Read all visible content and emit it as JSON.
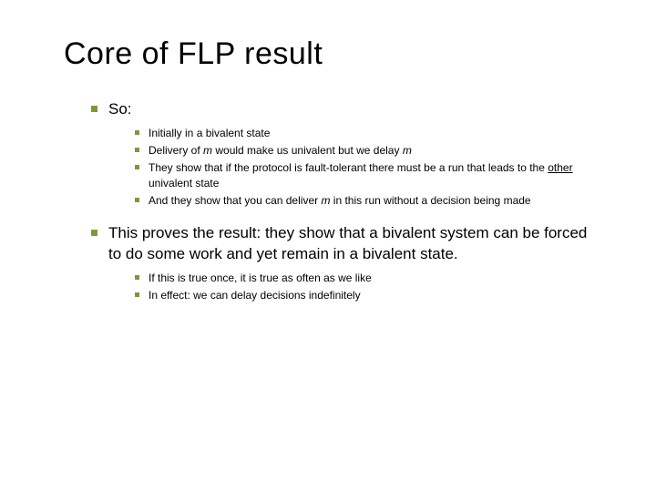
{
  "colors": {
    "bullet": "#7a9a3a",
    "text": "#000000",
    "background": "#ffffff"
  },
  "title": "Core of FLP result",
  "items": [
    {
      "level": 1,
      "text": "So:"
    },
    {
      "level": 2,
      "segments": [
        {
          "t": "Initially in a bivalent state"
        }
      ]
    },
    {
      "level": 2,
      "segments": [
        {
          "t": "Delivery of "
        },
        {
          "t": "m",
          "em": true
        },
        {
          "t": " would make us univalent but we delay "
        },
        {
          "t": "m",
          "em": true
        }
      ]
    },
    {
      "level": 2,
      "segments": [
        {
          "t": "They show that if the protocol is fault-tolerant there must be a run that leads to the "
        },
        {
          "t": "other",
          "ul": true
        },
        {
          "t": " univalent state"
        }
      ]
    },
    {
      "level": 2,
      "segments": [
        {
          "t": "And they show that you can deliver "
        },
        {
          "t": "m",
          "em": true
        },
        {
          "t": " in this run without a decision being made"
        }
      ]
    },
    {
      "level": 1,
      "text": "This proves the result: they show that a bivalent system can be forced to do some work and yet remain in a bivalent state."
    },
    {
      "level": 2,
      "segments": [
        {
          "t": "If this is true once, it is true as often as we like"
        }
      ]
    },
    {
      "level": 2,
      "segments": [
        {
          "t": "In effect: we can delay decisions indefinitely"
        }
      ]
    }
  ]
}
